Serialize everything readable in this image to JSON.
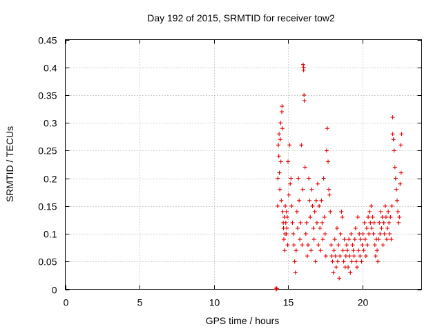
{
  "chart_data": {
    "type": "scatter",
    "title": "Day 192 of 2015, SRMTID for receiver tow2",
    "xlabel": "GPS time / hours",
    "ylabel": "SRMTID / TECUs",
    "xlim": [
      0,
      24
    ],
    "ylim": [
      0,
      0.45
    ],
    "xticks": [
      0,
      5,
      10,
      15,
      20
    ],
    "xtick_labels": [
      "0",
      "5",
      "10",
      "15",
      "20"
    ],
    "yticks": [
      0,
      0.05,
      0.1,
      0.15,
      0.2,
      0.25,
      0.3,
      0.35,
      0.4,
      0.45
    ],
    "ytick_labels": [
      "0",
      "0.05",
      "0.1",
      "0.15",
      "0.2",
      "0.25",
      "0.3",
      "0.35",
      "0.4",
      "0.45"
    ],
    "grid": true,
    "marker": "+",
    "marker_color": "#e00000",
    "series": [
      {
        "name": "SRMTID",
        "x": [
          14.2,
          14.2,
          14.25,
          14.3,
          14.32,
          14.35,
          14.38,
          14.4,
          14.42,
          14.45,
          14.48,
          14.5,
          14.52,
          14.55,
          14.58,
          14.6,
          14.62,
          14.65,
          14.68,
          14.7,
          14.72,
          14.75,
          14.78,
          14.8,
          14.82,
          14.85,
          14.88,
          14.9,
          14.92,
          14.95,
          14.98,
          15.0,
          15.05,
          15.1,
          15.15,
          15.2,
          15.25,
          15.3,
          15.35,
          15.4,
          15.45,
          15.5,
          15.55,
          15.6,
          15.65,
          15.7,
          15.75,
          15.8,
          15.85,
          15.9,
          15.95,
          16.0,
          16.02,
          16.05,
          16.05,
          16.08,
          16.1,
          16.15,
          16.2,
          16.25,
          16.3,
          16.35,
          16.4,
          16.45,
          16.5,
          16.55,
          16.6,
          16.65,
          16.7,
          16.75,
          16.8,
          16.85,
          16.9,
          16.95,
          17.0,
          17.05,
          17.1,
          17.15,
          17.2,
          17.25,
          17.3,
          17.35,
          17.4,
          17.45,
          17.5,
          17.55,
          17.6,
          17.65,
          17.7,
          17.75,
          17.8,
          17.85,
          17.9,
          17.95,
          18.0,
          18.05,
          18.1,
          18.15,
          18.2,
          18.25,
          18.3,
          18.35,
          18.4,
          18.45,
          18.5,
          18.55,
          18.6,
          18.65,
          18.7,
          18.75,
          18.8,
          18.85,
          18.9,
          18.95,
          19.0,
          19.05,
          19.1,
          19.15,
          19.2,
          19.25,
          19.3,
          19.35,
          19.4,
          19.45,
          19.5,
          19.55,
          19.6,
          19.65,
          19.7,
          19.75,
          19.8,
          19.85,
          19.9,
          19.95,
          20.0,
          20.05,
          20.1,
          20.15,
          20.2,
          20.25,
          20.3,
          20.35,
          20.4,
          20.45,
          20.5,
          20.55,
          20.6,
          20.65,
          20.7,
          20.75,
          20.8,
          20.85,
          20.9,
          20.95,
          21.0,
          21.05,
          21.1,
          21.15,
          21.2,
          21.25,
          21.3,
          21.35,
          21.4,
          21.45,
          21.5,
          21.55,
          21.6,
          21.65,
          21.7,
          21.75,
          21.8,
          21.85,
          21.9,
          21.95,
          22.0,
          22.05,
          22.05,
          22.1,
          22.15,
          22.2,
          22.25,
          22.3,
          22.35,
          22.4,
          22.45,
          22.5,
          22.55,
          22.6,
          22.62,
          22.65
        ],
        "y": [
          0.0,
          0.002,
          0.001,
          0.15,
          0.2,
          0.26,
          0.24,
          0.28,
          0.21,
          0.18,
          0.27,
          0.3,
          0.23,
          0.16,
          0.32,
          0.33,
          0.29,
          0.14,
          0.12,
          0.11,
          0.09,
          0.13,
          0.07,
          0.1,
          0.15,
          0.12,
          0.1,
          0.14,
          0.11,
          0.13,
          0.08,
          0.23,
          0.17,
          0.26,
          0.19,
          0.2,
          0.15,
          0.12,
          0.1,
          0.08,
          0.05,
          0.03,
          0.07,
          0.14,
          0.11,
          0.2,
          0.16,
          0.09,
          0.12,
          0.26,
          0.08,
          0.18,
          0.405,
          0.395,
          0.4,
          0.35,
          0.34,
          0.22,
          0.1,
          0.12,
          0.06,
          0.08,
          0.2,
          0.16,
          0.13,
          0.07,
          0.18,
          0.15,
          0.11,
          0.09,
          0.14,
          0.05,
          0.16,
          0.12,
          0.19,
          0.08,
          0.15,
          0.11,
          0.07,
          0.16,
          0.12,
          0.09,
          0.2,
          0.13,
          0.1,
          0.06,
          0.25,
          0.29,
          0.23,
          0.18,
          0.17,
          0.14,
          0.08,
          0.06,
          0.05,
          0.03,
          0.07,
          0.09,
          0.06,
          0.04,
          0.11,
          0.05,
          0.08,
          0.02,
          0.06,
          0.1,
          0.14,
          0.13,
          0.07,
          0.05,
          0.09,
          0.04,
          0.06,
          0.08,
          0.07,
          0.04,
          0.09,
          0.06,
          0.03,
          0.1,
          0.05,
          0.08,
          0.07,
          0.06,
          0.09,
          0.11,
          0.05,
          0.04,
          0.13,
          0.07,
          0.1,
          0.06,
          0.09,
          0.05,
          0.08,
          0.1,
          0.07,
          0.12,
          0.09,
          0.06,
          0.11,
          0.08,
          0.13,
          0.1,
          0.14,
          0.12,
          0.15,
          0.11,
          0.13,
          0.1,
          0.12,
          0.08,
          0.06,
          0.09,
          0.07,
          0.05,
          0.09,
          0.12,
          0.1,
          0.14,
          0.11,
          0.13,
          0.08,
          0.12,
          0.1,
          0.15,
          0.13,
          0.09,
          0.11,
          0.14,
          0.12,
          0.1,
          0.13,
          0.09,
          0.15,
          0.31,
          0.28,
          0.27,
          0.25,
          0.22,
          0.2,
          0.18,
          0.16,
          0.14,
          0.12,
          0.13,
          0.19,
          0.26,
          0.21,
          0.28
        ]
      }
    ]
  }
}
